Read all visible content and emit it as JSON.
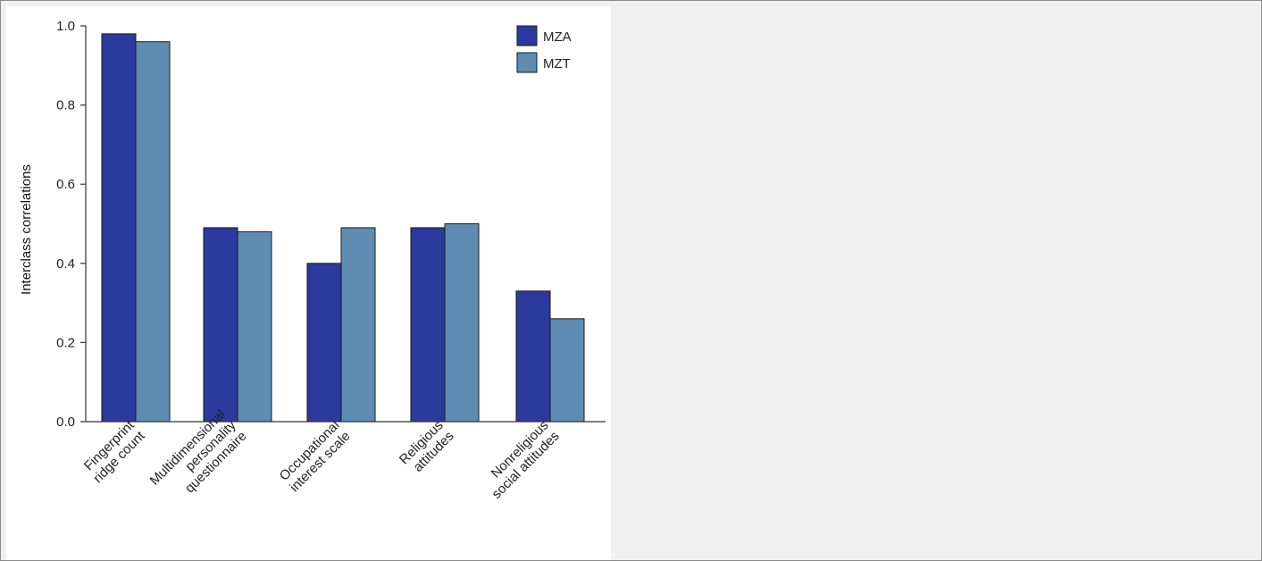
{
  "chart_data": {
    "type": "bar",
    "title": "",
    "xlabel": "",
    "ylabel": "Interclass correlations",
    "ylim": [
      0,
      1.0
    ],
    "yticks": [
      "0.0",
      "0.2",
      "0.4",
      "0.6",
      "0.8",
      "1.0"
    ],
    "categories": [
      [
        "Fingerprint",
        "ridge count"
      ],
      [
        "Multidimensional",
        "personality",
        "questionnaire"
      ],
      [
        "Occupational",
        "interest scale"
      ],
      [
        "Religious",
        "attitudes"
      ],
      [
        "Nonreligious",
        "social attitudes"
      ]
    ],
    "series": [
      {
        "name": "MZA",
        "color": "#2b3a9c",
        "values": [
          0.98,
          0.49,
          0.4,
          0.49,
          0.33
        ]
      },
      {
        "name": "MZT",
        "color": "#5e8cb3",
        "values": [
          0.96,
          0.48,
          0.49,
          0.5,
          0.26
        ]
      }
    ],
    "legend": "top-right",
    "grid": false
  }
}
